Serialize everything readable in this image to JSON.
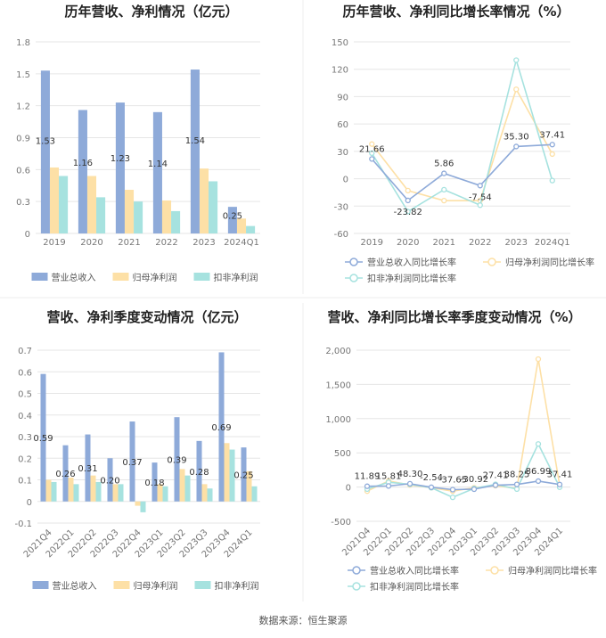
{
  "source_note": "数据来源：恒生聚源",
  "colors": {
    "revenue": "#8eaad9",
    "net_profit": "#fde0a6",
    "deducted_profit": "#a6e2df",
    "revenue_line": "#8eaad9",
    "net_profit_line": "#fde0a6",
    "deducted_line": "#a6e2df",
    "grid": "#e6e6e6",
    "axis_text": "#777777",
    "title": "#222222"
  },
  "chart_data": [
    {
      "type": "bar",
      "title": "历年营收、净利情况（亿元）",
      "categories": [
        "2019",
        "2020",
        "2021",
        "2022",
        "2023",
        "2024Q1"
      ],
      "ylim": [
        0,
        1.8
      ],
      "yticks": [
        0,
        0.3,
        0.6,
        0.9,
        1.2,
        1.5,
        1.8
      ],
      "ytick_labels": [
        "0",
        "0.3",
        "0.6",
        "0.9",
        "1.2",
        "1.5",
        "1.8"
      ],
      "series": [
        {
          "name": "营业总收入",
          "values": [
            1.53,
            1.16,
            1.23,
            1.14,
            1.54,
            0.25
          ]
        },
        {
          "name": "归母净利润",
          "values": [
            0.62,
            0.54,
            0.41,
            0.31,
            0.61,
            0.14
          ]
        },
        {
          "name": "扣非净利润",
          "values": [
            0.54,
            0.34,
            0.3,
            0.21,
            0.49,
            0.07
          ]
        }
      ],
      "data_labels": [
        "1.53",
        "1.16",
        "1.23",
        "1.14",
        "1.54",
        "0.25"
      ],
      "legend_position": "bottom"
    },
    {
      "type": "line",
      "title": "历年营收、净利同比增长率情况（%）",
      "categories": [
        "2019",
        "2020",
        "2021",
        "2022",
        "2023",
        "2024Q1"
      ],
      "ylim": [
        -60,
        150
      ],
      "yticks": [
        -60,
        -30,
        0,
        30,
        60,
        90,
        120,
        150
      ],
      "ytick_labels": [
        "-60",
        "-30",
        "0",
        "30",
        "60",
        "90",
        "120",
        "150"
      ],
      "series": [
        {
          "name": "营业总收入同比增长率",
          "values": [
            21.66,
            -23.82,
            5.86,
            -7.54,
            35.3,
            37.41
          ]
        },
        {
          "name": "归母净利润同比增长率",
          "values": [
            38,
            -13,
            -24,
            -24,
            98,
            27
          ]
        },
        {
          "name": "扣非净利润同比增长率",
          "values": [
            28,
            -36,
            -12,
            -29,
            130,
            -2
          ]
        }
      ],
      "data_labels": [
        "21.66",
        "-23.82",
        "5.86",
        "-7.54",
        "35.30",
        "37.41"
      ],
      "legend_position": "bottom"
    },
    {
      "type": "bar",
      "title": "营收、净利季度变动情况（亿元）",
      "categories": [
        "2021Q4",
        "2022Q1",
        "2022Q2",
        "2022Q3",
        "2022Q4",
        "2023Q1",
        "2023Q2",
        "2023Q3",
        "2023Q4",
        "2024Q1"
      ],
      "ylim": [
        -0.1,
        0.7
      ],
      "yticks": [
        -0.1,
        0,
        0.1,
        0.2,
        0.3,
        0.4,
        0.5,
        0.6,
        0.7
      ],
      "ytick_labels": [
        "-0.1",
        "0",
        "0.1",
        "0.2",
        "0.3",
        "0.4",
        "0.5",
        "0.6",
        "0.7"
      ],
      "series": [
        {
          "name": "营业总收入",
          "values": [
            0.59,
            0.26,
            0.31,
            0.2,
            0.37,
            0.18,
            0.39,
            0.28,
            0.69,
            0.25
          ]
        },
        {
          "name": "归母净利润",
          "values": [
            0.1,
            0.11,
            0.12,
            0.08,
            -0.02,
            0.08,
            0.15,
            0.08,
            0.27,
            0.14
          ]
        },
        {
          "name": "扣非净利润",
          "values": [
            0.09,
            0.08,
            0.09,
            0.08,
            -0.05,
            0.07,
            0.12,
            0.06,
            0.24,
            0.07
          ]
        }
      ],
      "data_labels": [
        "0.59",
        "0.26",
        "0.31",
        "0.20",
        "0.37",
        "0.18",
        "0.39",
        "0.28",
        "0.69",
        "0.25"
      ],
      "legend_position": "bottom"
    },
    {
      "type": "line",
      "title": "营收、净利同比增长率季度变动情况（%）",
      "categories": [
        "2021Q4",
        "2022Q1",
        "2022Q2",
        "2022Q3",
        "2022Q4",
        "2023Q1",
        "2023Q2",
        "2023Q3",
        "2023Q4",
        "2024Q1"
      ],
      "ylim": [
        -500,
        2000
      ],
      "yticks": [
        -500,
        0,
        500,
        1000,
        1500,
        2000
      ],
      "ytick_labels": [
        "-500",
        "0",
        "500",
        "1,000",
        "1,500",
        "2,000"
      ],
      "series": [
        {
          "name": "营业总收入同比增长率",
          "values": [
            11.89,
            15.81,
            48.3,
            -2.54,
            -37.65,
            -30.92,
            27.41,
            38.25,
            86.99,
            37.41
          ]
        },
        {
          "name": "归母净利润同比增长率",
          "values": [
            -60,
            90,
            30,
            -10,
            -60,
            -10,
            20,
            -20,
            1870,
            27
          ]
        },
        {
          "name": "扣非净利润同比增长率",
          "values": [
            -30,
            70,
            40,
            -10,
            -150,
            -20,
            40,
            -30,
            630,
            -2
          ]
        }
      ],
      "data_labels": [
        "11.89",
        "15.81",
        "48.30",
        "-2.54",
        "-37.65",
        "-30.92",
        "27.41",
        "38.25",
        "86.99",
        "37.41"
      ],
      "legend_position": "bottom"
    }
  ]
}
